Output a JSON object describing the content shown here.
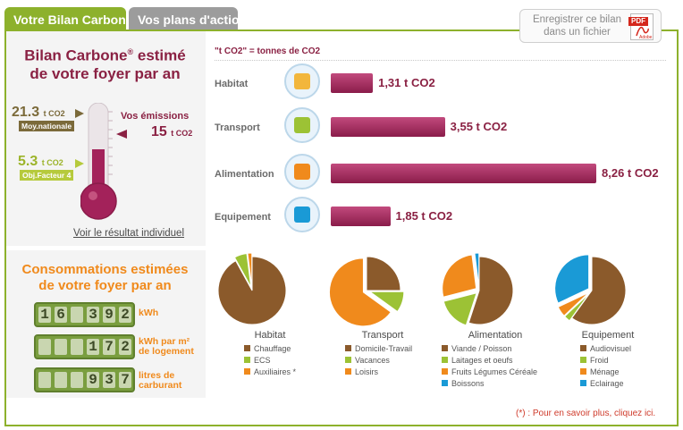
{
  "tabs": [
    {
      "label": "Votre Bilan Carbone",
      "active": true
    },
    {
      "label": "Vos plans d'action",
      "active": false
    }
  ],
  "export": {
    "line1": "Enregistrer ce bilan",
    "line2": "dans un fichier",
    "pdf_label": "PDF",
    "pdf_brand": "Adobe"
  },
  "bilan": {
    "title_line1": "Bilan Carbone",
    "title_reg": "®",
    "title_line1_end": " estimé",
    "title_line2": "de votre foyer par an",
    "moy_value": "21.3",
    "moy_unit": "t CO2",
    "moy_label": "Moy.nationale",
    "emissions_label": "Vos émissions",
    "emissions_value": "15",
    "emissions_unit": "t CO2",
    "obj_value": "5.3",
    "obj_unit": "t CO2",
    "obj_label": "Obj.Facteur 4",
    "thermometer_level": 0.6,
    "voir_link": "Voir le résultat individuel"
  },
  "conso": {
    "title_line1": "Consommations estimées",
    "title_line2": "de votre foyer par an",
    "rows": [
      {
        "digits": [
          "1",
          "6",
          "",
          "3",
          "9",
          "2"
        ],
        "unit_line1": "kWh",
        "unit_line2": ""
      },
      {
        "digits": [
          "",
          "",
          "",
          "1",
          "7",
          "2"
        ],
        "unit_line1": "kWh par m²",
        "unit_line2": "de logement"
      },
      {
        "digits": [
          "",
          "",
          "",
          "9",
          "3",
          "7"
        ],
        "unit_line1": "litres de",
        "unit_line2": "carburant"
      }
    ]
  },
  "emissions_chart": {
    "unit_note": "\"t CO2\" = tonnes de CO2",
    "categories": [
      {
        "name": "Habitat",
        "value": 1.31,
        "label": "1,31 t CO2",
        "icon": "house-icon"
      },
      {
        "name": "Transport",
        "value": 3.55,
        "label": "3,55 t CO2",
        "icon": "road-icon"
      },
      {
        "name": "Alimentation",
        "value": 8.26,
        "label": "8,26 t CO2",
        "icon": "food-basket-icon"
      },
      {
        "name": "Equipement",
        "value": 1.85,
        "label": "1,85 t CO2",
        "icon": "appliance-icon"
      }
    ],
    "bar_color": "#a3225a"
  },
  "chart_data": [
    {
      "type": "pie",
      "title": "Habitat",
      "categories": [
        "Chauffage",
        "ECS",
        "Auxiliaires *"
      ],
      "values": [
        92,
        6,
        2
      ],
      "colors": [
        "#8b5a2b",
        "#9cc235",
        "#f08a1c"
      ]
    },
    {
      "type": "pie",
      "title": "Transport",
      "categories": [
        "Domicile-Travail",
        "Vacances",
        "Loisirs"
      ],
      "values": [
        25,
        10,
        65
      ],
      "colors": [
        "#8b5a2b",
        "#9cc235",
        "#f08a1c"
      ]
    },
    {
      "type": "pie",
      "title": "Alimentation",
      "categories": [
        "Viande / Poisson",
        "Laitages et oeufs",
        "Fruits Légumes Céréale",
        "Boissons"
      ],
      "values": [
        55,
        16,
        27,
        2
      ],
      "colors": [
        "#8b5a2b",
        "#9cc235",
        "#f08a1c",
        "#1a9ad6"
      ]
    },
    {
      "type": "pie",
      "title": "Equipement",
      "categories": [
        "Audiovisuel",
        "Froid",
        "Ménage",
        "Eclairage"
      ],
      "values": [
        60,
        3,
        5,
        32
      ],
      "colors": [
        "#8b5a2b",
        "#9cc235",
        "#f08a1c",
        "#1a9ad6"
      ]
    }
  ],
  "note": "(*) : Pour en savoir plus, cliquez ici."
}
